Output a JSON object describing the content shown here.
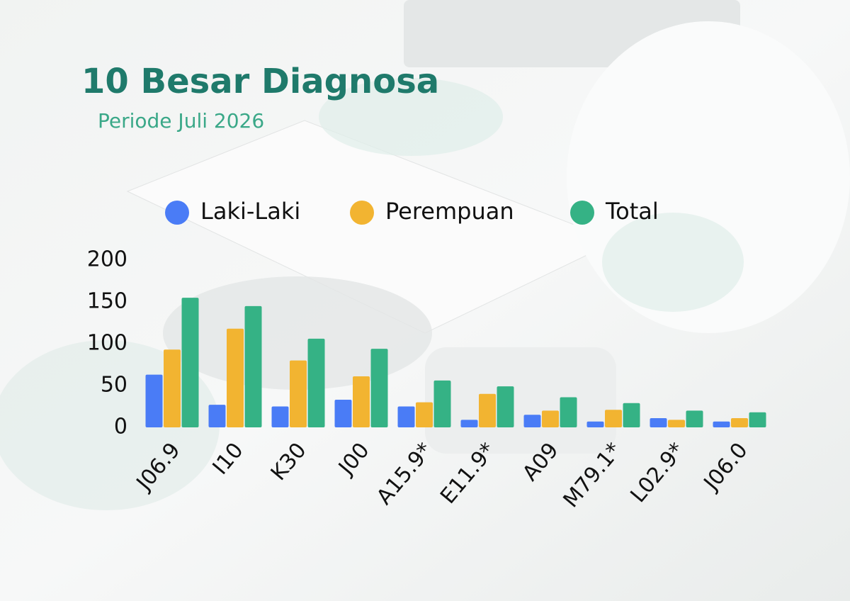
{
  "chart_data": {
    "type": "bar",
    "title": "10 Besar Diagnosa",
    "subtitle": "Periode Juli 2026",
    "categories": [
      "J06.9",
      "I10",
      "K30",
      "J00",
      "A15.9*",
      "E11.9*",
      "A09",
      "M79.1*",
      "L02.9*",
      "J06.0"
    ],
    "series": [
      {
        "name": "Laki-Laki",
        "color": "#4a7cf6",
        "values": [
          63,
          27,
          25,
          33,
          25,
          9,
          15,
          7,
          11,
          7
        ]
      },
      {
        "name": "Perempuan",
        "color": "#f2b431",
        "values": [
          93,
          118,
          80,
          61,
          30,
          40,
          20,
          21,
          9,
          11
        ]
      },
      {
        "name": "Total",
        "color": "#35b285",
        "values": [
          155,
          145,
          106,
          94,
          56,
          49,
          36,
          29,
          20,
          18
        ]
      }
    ],
    "ylim": [
      0,
      200
    ],
    "yticks": [
      0,
      50,
      100,
      150,
      200
    ],
    "grid": false,
    "legend": "top"
  }
}
